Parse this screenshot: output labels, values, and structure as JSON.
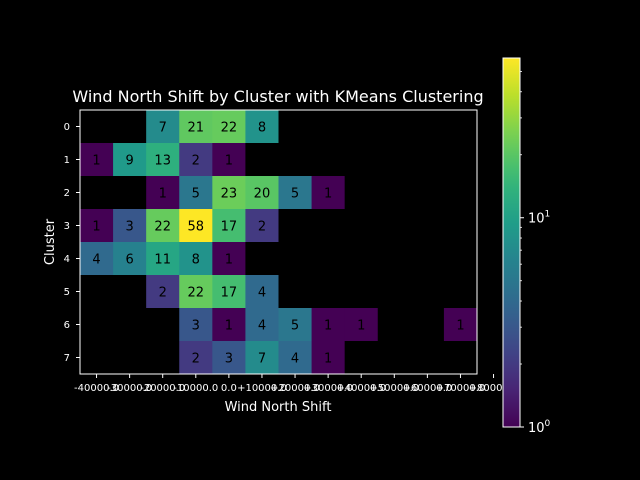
{
  "chart_data": {
    "type": "heatmap",
    "title": "Wind North Shift by Cluster with KMeans Clustering",
    "xlabel": "Wind North Shift",
    "ylabel": "Cluster",
    "x_tick_labels": [
      "-40000.0",
      "-30000.0",
      "-20000.0",
      "-10000.0",
      "0.0",
      "+10000.0",
      "+20000.0",
      "+30000.0",
      "+40000.0",
      "+50000.0",
      "+60000.0",
      "+70000.0",
      "+80000.0"
    ],
    "y_tick_labels": [
      "0",
      "1",
      "2",
      "3",
      "4",
      "5",
      "6",
      "7"
    ],
    "color_scale": "log",
    "colormap": "viridis",
    "colorbar_range": [
      1,
      58
    ],
    "colorbar_ticks": [
      {
        "base": "10",
        "exp": "0"
      },
      {
        "base": "10",
        "exp": "1"
      }
    ],
    "missing_color": "#000000",
    "rows": [
      [
        null,
        null,
        7,
        21,
        22,
        8,
        null,
        null,
        null,
        null,
        null,
        null
      ],
      [
        1,
        9,
        13,
        2,
        1,
        null,
        null,
        null,
        null,
        null,
        null,
        null
      ],
      [
        null,
        null,
        1,
        5,
        23,
        20,
        5,
        1,
        null,
        null,
        null,
        null
      ],
      [
        1,
        3,
        22,
        58,
        17,
        2,
        null,
        null,
        null,
        null,
        null,
        null
      ],
      [
        4,
        6,
        11,
        8,
        1,
        null,
        null,
        null,
        null,
        null,
        null,
        null
      ],
      [
        null,
        null,
        2,
        22,
        17,
        4,
        null,
        null,
        null,
        null,
        null,
        null
      ],
      [
        null,
        null,
        null,
        3,
        1,
        4,
        5,
        1,
        1,
        null,
        null,
        1
      ],
      [
        null,
        null,
        null,
        2,
        3,
        7,
        4,
        1,
        null,
        null,
        null,
        null
      ]
    ]
  }
}
